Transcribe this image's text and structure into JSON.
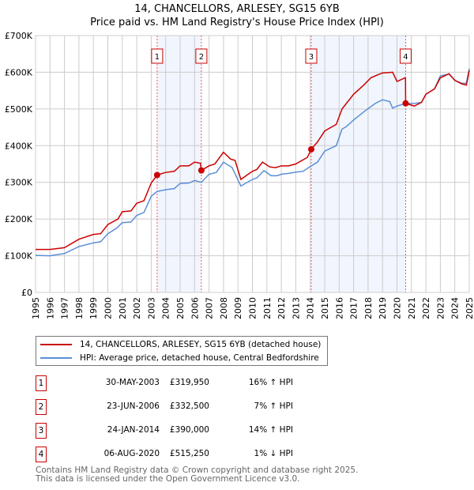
{
  "chart_data": {
    "type": "line",
    "title": "14, CHANCELLORS, ARLESEY, SG15 6YB",
    "subtitle": "Price paid vs. HM Land Registry's House Price Index (HPI)",
    "xlim": [
      1995,
      2025
    ],
    "ylim": [
      0,
      700000
    ],
    "x_ticks": [
      "1995",
      "1996",
      "1997",
      "1998",
      "1999",
      "2000",
      "2001",
      "2002",
      "2003",
      "2004",
      "2005",
      "2006",
      "2007",
      "2008",
      "2009",
      "2010",
      "2011",
      "2012",
      "2013",
      "2014",
      "2015",
      "2016",
      "2017",
      "2018",
      "2019",
      "2020",
      "2021",
      "2022",
      "2023",
      "2024",
      "2025"
    ],
    "y_ticks": [
      {
        "v": 0,
        "label": "£0"
      },
      {
        "v": 100000,
        "label": "£100K"
      },
      {
        "v": 200000,
        "label": "£200K"
      },
      {
        "v": 300000,
        "label": "£300K"
      },
      {
        "v": 400000,
        "label": "£400K"
      },
      {
        "v": 500000,
        "label": "£500K"
      },
      {
        "v": 600000,
        "label": "£600K"
      },
      {
        "v": 700000,
        "label": "£700K"
      }
    ],
    "grid": true,
    "series": [
      {
        "name": "14, CHANCELLORS, ARLESEY, SG15 6YB (detached house)",
        "color": "#cc0000",
        "points": [
          [
            1995,
            117
          ],
          [
            1996,
            117
          ],
          [
            1997,
            122
          ],
          [
            1998,
            145
          ],
          [
            1999,
            158
          ],
          [
            1999.5,
            160
          ],
          [
            2000,
            185
          ],
          [
            2000.7,
            200
          ],
          [
            2001,
            220
          ],
          [
            2001.6,
            222
          ],
          [
            2002,
            243
          ],
          [
            2002.5,
            250
          ],
          [
            2003,
            298
          ],
          [
            2003.41,
            320
          ],
          [
            2004,
            327
          ],
          [
            2004.6,
            330
          ],
          [
            2005,
            345
          ],
          [
            2005.6,
            345
          ],
          [
            2006,
            355
          ],
          [
            2006.4,
            352
          ],
          [
            2006.47,
            332.5
          ],
          [
            2007,
            345
          ],
          [
            2007.4,
            350
          ],
          [
            2008,
            382
          ],
          [
            2008.5,
            363
          ],
          [
            2008.8,
            360
          ],
          [
            2009.2,
            308
          ],
          [
            2010,
            330
          ],
          [
            2010.3,
            335
          ],
          [
            2010.7,
            355
          ],
          [
            2011.2,
            342
          ],
          [
            2011.6,
            340
          ],
          [
            2012,
            345
          ],
          [
            2012.5,
            345
          ],
          [
            2013,
            350
          ],
          [
            2013.8,
            368
          ],
          [
            2014.07,
            390
          ],
          [
            2014.5,
            410
          ],
          [
            2015,
            440
          ],
          [
            2015.8,
            458
          ],
          [
            2016.2,
            500
          ],
          [
            2016.5,
            515
          ],
          [
            2017,
            540
          ],
          [
            2017.7,
            565
          ],
          [
            2018.2,
            585
          ],
          [
            2018.6,
            592
          ],
          [
            2019,
            598
          ],
          [
            2019.7,
            600
          ],
          [
            2020,
            575
          ],
          [
            2020.3,
            580
          ],
          [
            2020.55,
            585
          ],
          [
            2020.59,
            583
          ],
          [
            2020.6,
            515
          ],
          [
            2021.2,
            508
          ],
          [
            2021.7,
            518
          ],
          [
            2022,
            540
          ],
          [
            2022.6,
            555
          ],
          [
            2023,
            585
          ],
          [
            2023.6,
            596
          ],
          [
            2024,
            578
          ],
          [
            2024.5,
            568
          ],
          [
            2024.8,
            565
          ],
          [
            2025,
            605
          ]
        ]
      },
      {
        "name": "HPI: Average price, detached house, Central Bedfordshire",
        "color": "#5b8fd6",
        "points": [
          [
            1995,
            101
          ],
          [
            1996,
            100
          ],
          [
            1997,
            106
          ],
          [
            1998,
            125
          ],
          [
            1999,
            135
          ],
          [
            1999.5,
            138
          ],
          [
            2000,
            160
          ],
          [
            2000.6,
            175
          ],
          [
            2001,
            190
          ],
          [
            2001.6,
            192
          ],
          [
            2002,
            210
          ],
          [
            2002.5,
            218
          ],
          [
            2003,
            262
          ],
          [
            2003.41,
            275
          ],
          [
            2004,
            280
          ],
          [
            2004.6,
            283
          ],
          [
            2005,
            297
          ],
          [
            2005.6,
            298
          ],
          [
            2006,
            305
          ],
          [
            2006.47,
            300
          ],
          [
            2007,
            322
          ],
          [
            2007.5,
            327
          ],
          [
            2008,
            355
          ],
          [
            2008.6,
            340
          ],
          [
            2009.2,
            290
          ],
          [
            2010,
            308
          ],
          [
            2010.3,
            312
          ],
          [
            2010.8,
            332
          ],
          [
            2011.3,
            318
          ],
          [
            2011.7,
            318
          ],
          [
            2012,
            322
          ],
          [
            2012.6,
            325
          ],
          [
            2013,
            328
          ],
          [
            2013.5,
            330
          ],
          [
            2014,
            343
          ],
          [
            2014.5,
            355
          ],
          [
            2015,
            385
          ],
          [
            2015.8,
            400
          ],
          [
            2016.2,
            445
          ],
          [
            2016.5,
            452
          ],
          [
            2017,
            470
          ],
          [
            2017.8,
            495
          ],
          [
            2018.5,
            515
          ],
          [
            2019,
            525
          ],
          [
            2019.5,
            520
          ],
          [
            2019.7,
            502
          ],
          [
            2020,
            508
          ],
          [
            2020.6,
            515
          ],
          [
            2021.2,
            515
          ],
          [
            2021.7,
            518
          ],
          [
            2022,
            540
          ],
          [
            2022.6,
            555
          ],
          [
            2023,
            590
          ],
          [
            2023.6,
            595
          ],
          [
            2024,
            578
          ],
          [
            2024.5,
            570
          ],
          [
            2024.8,
            570
          ],
          [
            2025,
            610
          ]
        ]
      }
    ],
    "shaded_ranges": [
      [
        2003.41,
        2006.47
      ],
      [
        2014.07,
        2020.6
      ]
    ],
    "sales": [
      {
        "num": "1",
        "x": 2003.41,
        "value": 319950,
        "date": "30-MAY-2003",
        "price": "£319,950",
        "hpi": "16% ↑ HPI"
      },
      {
        "num": "2",
        "x": 2006.47,
        "value": 332500,
        "date": "23-JUN-2006",
        "price": "£332,500",
        "hpi": "7% ↑ HPI"
      },
      {
        "num": "3",
        "x": 2014.07,
        "value": 390000,
        "date": "24-JAN-2014",
        "price": "£390,000",
        "hpi": "14% ↑ HPI"
      },
      {
        "num": "4",
        "x": 2020.6,
        "value": 515250,
        "date": "06-AUG-2020",
        "price": "£515,250",
        "hpi": "1% ↓ HPI"
      }
    ],
    "legend": [
      "14, CHANCELLORS, ARLESEY, SG15 6YB (detached house)",
      "HPI: Average price, detached house, Central Bedfordshire"
    ]
  },
  "footer": {
    "line1": "Contains HM Land Registry data © Crown copyright and database right 2025.",
    "line2": "This data is licensed under the Open Government Licence v3.0."
  }
}
